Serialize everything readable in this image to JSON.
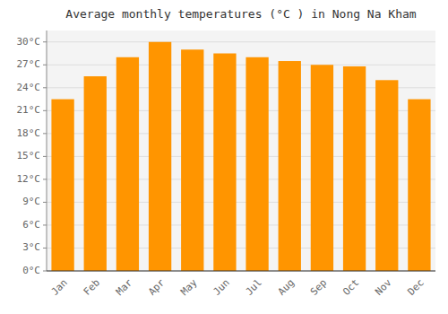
{
  "chart_data": {
    "type": "bar",
    "title": "Average monthly temperatures (°C ) in Nong Na Kham",
    "categories": [
      "Jan",
      "Feb",
      "Mar",
      "Apr",
      "May",
      "Jun",
      "Jul",
      "Aug",
      "Sep",
      "Oct",
      "Nov",
      "Dec"
    ],
    "values": [
      22.5,
      25.5,
      28.0,
      30.0,
      29.0,
      28.5,
      28.0,
      27.5,
      27.0,
      26.8,
      25.0,
      22.5
    ],
    "color": "#FF9500",
    "ylim": [
      0,
      31.5
    ],
    "yticks": [
      {
        "value": 0,
        "label": "0°C"
      },
      {
        "value": 3,
        "label": "3°C"
      },
      {
        "value": 6,
        "label": "6°C"
      },
      {
        "value": 9,
        "label": "9°C"
      },
      {
        "value": 12,
        "label": "12°C"
      },
      {
        "value": 15,
        "label": "15°C"
      },
      {
        "value": 18,
        "label": "18°C"
      },
      {
        "value": 21,
        "label": "21°C"
      },
      {
        "value": 24,
        "label": "24°C"
      },
      {
        "value": 27,
        "label": "27°C"
      },
      {
        "value": 30,
        "label": "30°C"
      }
    ],
    "grid": true
  }
}
